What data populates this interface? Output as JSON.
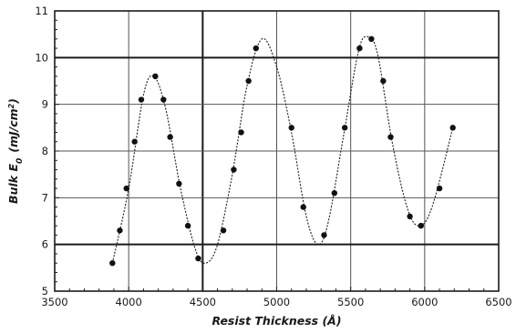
{
  "chart_data": {
    "type": "scatter",
    "xlabel": "Resist Thickness (Å)",
    "ylabel_main": "Bulk E",
    "ylabel_sub": "0",
    "ylabel_unit_base": "(mJ/cm",
    "ylabel_unit_sup": "2",
    "ylabel_unit_close": ")",
    "xlim": [
      3500,
      6500
    ],
    "ylim": [
      5,
      11
    ],
    "x_ticks": [
      3500,
      4000,
      4500,
      5000,
      5500,
      6000,
      6500
    ],
    "y_ticks": [
      5,
      6,
      7,
      8,
      9,
      10,
      11
    ],
    "major_gridlines": {
      "x": [
        4500
      ],
      "y": [
        6,
        10
      ]
    },
    "grid": true,
    "series": [
      {
        "points": [
          [
            3890,
            5.6
          ],
          [
            3940,
            6.3
          ],
          [
            3985,
            7.2
          ],
          [
            4040,
            8.2
          ],
          [
            4085,
            9.1
          ],
          [
            4180,
            9.6
          ],
          [
            4235,
            9.1
          ],
          [
            4280,
            8.3
          ],
          [
            4340,
            7.3
          ],
          [
            4400,
            6.4
          ],
          [
            4470,
            5.7
          ],
          [
            4640,
            6.3
          ],
          [
            4710,
            7.6
          ],
          [
            4760,
            8.4
          ],
          [
            4810,
            9.5
          ],
          [
            4860,
            10.2
          ],
          [
            5100,
            8.5
          ],
          [
            5180,
            6.8
          ],
          [
            5320,
            6.2
          ],
          [
            5390,
            7.1
          ],
          [
            5460,
            8.5
          ],
          [
            5560,
            10.2
          ],
          [
            5640,
            10.4
          ],
          [
            5720,
            9.5
          ],
          [
            5770,
            8.3
          ],
          [
            5900,
            6.6
          ],
          [
            5975,
            6.4
          ],
          [
            6100,
            7.2
          ],
          [
            6190,
            8.5
          ]
        ]
      }
    ],
    "fit_curve": [
      [
        3890,
        5.6
      ],
      [
        4000,
        7.2
      ],
      [
        4100,
        9.2
      ],
      [
        4170,
        9.6
      ],
      [
        4250,
        8.9
      ],
      [
        4350,
        7.2
      ],
      [
        4450,
        5.9
      ],
      [
        4520,
        5.6
      ],
      [
        4600,
        6.0
      ],
      [
        4700,
        7.5
      ],
      [
        4800,
        9.4
      ],
      [
        4900,
        10.4
      ],
      [
        5000,
        9.8
      ],
      [
        5100,
        8.4
      ],
      [
        5200,
        6.6
      ],
      [
        5280,
        6.0
      ],
      [
        5350,
        6.5
      ],
      [
        5450,
        8.3
      ],
      [
        5550,
        10.1
      ],
      [
        5610,
        10.45
      ],
      [
        5680,
        10.1
      ],
      [
        5780,
        8.2
      ],
      [
        5880,
        6.8
      ],
      [
        5960,
        6.4
      ],
      [
        6050,
        6.8
      ],
      [
        6190,
        8.5
      ]
    ]
  }
}
